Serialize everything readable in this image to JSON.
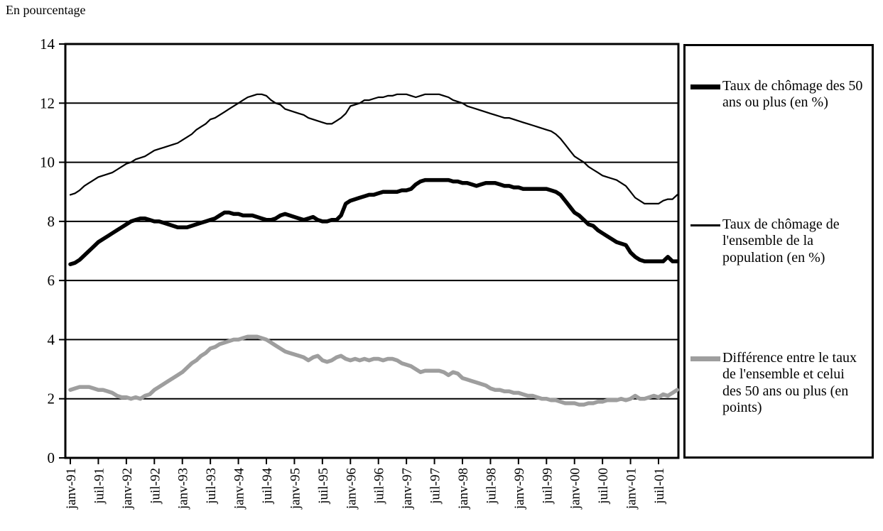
{
  "unit_label": "En pourcentage",
  "colors": {
    "line_50plus": "#000000",
    "line_ensemble": "#000000",
    "line_difference": "#9e9e9e",
    "axis": "#000000",
    "background": "#ffffff"
  },
  "legend": {
    "items": [
      {
        "label": "Taux de chômage des 50 ans ou plus (en %)",
        "swatch": "thick-black"
      },
      {
        "label": "Taux de chômage de l'ensemble de la population (en %)",
        "swatch": "thin-black"
      },
      {
        "label": "Différence entre le taux de l'ensemble et celui des 50 ans ou plus (en points)",
        "swatch": "thick-gray"
      }
    ]
  },
  "chart_data": {
    "type": "line",
    "title": "En pourcentage",
    "x_frequency": "monthly",
    "x_start": "janv-91",
    "x_end": "nov-01",
    "x_tick_every_months": 6,
    "x_tick_labels": [
      "janv-91",
      "juil-91",
      "janv-92",
      "juil-92",
      "janv-93",
      "juil-93",
      "janv-94",
      "juil-94",
      "janv-95",
      "juil-95",
      "janv-96",
      "juil-96",
      "janv-97",
      "juil-97",
      "janv-98",
      "juil-98",
      "janv-99",
      "juil-99",
      "janv-00",
      "juil-00",
      "janv-01",
      "juil-01"
    ],
    "ylim": [
      0,
      14
    ],
    "yticks": [
      0,
      2,
      4,
      6,
      8,
      10,
      12,
      14
    ],
    "grid": "horizontal",
    "legend_position": "right",
    "series": [
      {
        "name": "Taux de chômage des 50 ans ou plus (en %)",
        "style": "thick-black",
        "values": [
          6.55,
          6.6,
          6.7,
          6.85,
          7.0,
          7.15,
          7.3,
          7.4,
          7.5,
          7.6,
          7.7,
          7.8,
          7.9,
          8.0,
          8.05,
          8.1,
          8.1,
          8.05,
          8.0,
          8.0,
          7.95,
          7.9,
          7.85,
          7.8,
          7.8,
          7.8,
          7.85,
          7.9,
          7.95,
          8.0,
          8.05,
          8.1,
          8.2,
          8.3,
          8.3,
          8.25,
          8.25,
          8.2,
          8.2,
          8.2,
          8.15,
          8.1,
          8.05,
          8.05,
          8.1,
          8.2,
          8.25,
          8.2,
          8.15,
          8.1,
          8.05,
          8.1,
          8.15,
          8.05,
          8.0,
          8.0,
          8.05,
          8.05,
          8.2,
          8.6,
          8.7,
          8.75,
          8.8,
          8.85,
          8.9,
          8.9,
          8.95,
          9.0,
          9.0,
          9.0,
          9.0,
          9.05,
          9.05,
          9.1,
          9.25,
          9.35,
          9.4,
          9.4,
          9.4,
          9.4,
          9.4,
          9.4,
          9.35,
          9.35,
          9.3,
          9.3,
          9.25,
          9.2,
          9.25,
          9.3,
          9.3,
          9.3,
          9.25,
          9.2,
          9.2,
          9.15,
          9.15,
          9.1,
          9.1,
          9.1,
          9.1,
          9.1,
          9.1,
          9.05,
          9.0,
          8.9,
          8.7,
          8.5,
          8.3,
          8.2,
          8.05,
          7.9,
          7.85,
          7.7,
          7.6,
          7.5,
          7.4,
          7.3,
          7.25,
          7.2,
          6.95,
          6.8,
          6.7,
          6.65,
          6.65,
          6.65,
          6.65,
          6.65,
          6.8,
          6.65,
          6.65
        ]
      },
      {
        "name": "Taux de chômage de l'ensemble de la population (en %)",
        "style": "thin-black",
        "values": [
          8.9,
          8.95,
          9.05,
          9.2,
          9.3,
          9.4,
          9.5,
          9.55,
          9.6,
          9.65,
          9.75,
          9.85,
          9.95,
          10.0,
          10.1,
          10.15,
          10.2,
          10.3,
          10.4,
          10.45,
          10.5,
          10.55,
          10.6,
          10.65,
          10.75,
          10.85,
          10.95,
          11.1,
          11.2,
          11.3,
          11.45,
          11.5,
          11.6,
          11.7,
          11.8,
          11.9,
          12.0,
          12.1,
          12.2,
          12.25,
          12.3,
          12.3,
          12.25,
          12.1,
          12.0,
          11.95,
          11.8,
          11.75,
          11.7,
          11.65,
          11.6,
          11.5,
          11.45,
          11.4,
          11.35,
          11.3,
          11.3,
          11.4,
          11.5,
          11.65,
          11.9,
          11.95,
          12.0,
          12.1,
          12.1,
          12.15,
          12.2,
          12.2,
          12.25,
          12.25,
          12.3,
          12.3,
          12.3,
          12.25,
          12.2,
          12.25,
          12.3,
          12.3,
          12.3,
          12.3,
          12.25,
          12.2,
          12.1,
          12.05,
          12.0,
          11.9,
          11.85,
          11.8,
          11.75,
          11.7,
          11.65,
          11.6,
          11.55,
          11.5,
          11.5,
          11.45,
          11.4,
          11.35,
          11.3,
          11.25,
          11.2,
          11.15,
          11.1,
          11.05,
          10.95,
          10.8,
          10.6,
          10.4,
          10.2,
          10.1,
          10.0,
          9.85,
          9.75,
          9.65,
          9.55,
          9.5,
          9.45,
          9.4,
          9.3,
          9.2,
          9.0,
          8.8,
          8.7,
          8.6,
          8.6,
          8.6,
          8.6,
          8.7,
          8.75,
          8.75,
          8.9
        ]
      },
      {
        "name": "Différence entre le taux de l'ensemble et celui des 50 ans ou plus (en points)",
        "style": "thick-gray",
        "values": [
          2.3,
          2.35,
          2.4,
          2.4,
          2.4,
          2.35,
          2.3,
          2.3,
          2.25,
          2.2,
          2.1,
          2.05,
          2.05,
          2.0,
          2.05,
          2.0,
          2.1,
          2.15,
          2.3,
          2.4,
          2.5,
          2.6,
          2.7,
          2.8,
          2.9,
          3.05,
          3.2,
          3.3,
          3.45,
          3.55,
          3.7,
          3.75,
          3.85,
          3.9,
          3.95,
          4.0,
          4.0,
          4.05,
          4.1,
          4.1,
          4.1,
          4.05,
          4.0,
          3.9,
          3.8,
          3.7,
          3.6,
          3.55,
          3.5,
          3.45,
          3.4,
          3.3,
          3.4,
          3.45,
          3.3,
          3.25,
          3.3,
          3.4,
          3.45,
          3.35,
          3.3,
          3.35,
          3.3,
          3.35,
          3.3,
          3.35,
          3.35,
          3.3,
          3.35,
          3.35,
          3.3,
          3.2,
          3.15,
          3.1,
          3.0,
          2.9,
          2.95,
          2.95,
          2.95,
          2.95,
          2.9,
          2.8,
          2.9,
          2.85,
          2.7,
          2.65,
          2.6,
          2.55,
          2.5,
          2.45,
          2.35,
          2.3,
          2.3,
          2.25,
          2.25,
          2.2,
          2.2,
          2.15,
          2.1,
          2.1,
          2.05,
          2.0,
          2.0,
          1.95,
          1.95,
          1.9,
          1.85,
          1.85,
          1.85,
          1.8,
          1.8,
          1.85,
          1.85,
          1.9,
          1.9,
          1.95,
          1.95,
          1.95,
          2.0,
          1.95,
          2.0,
          2.1,
          2.0,
          2.0,
          2.05,
          2.1,
          2.05,
          2.15,
          2.1,
          2.2,
          2.3
        ]
      }
    ]
  }
}
